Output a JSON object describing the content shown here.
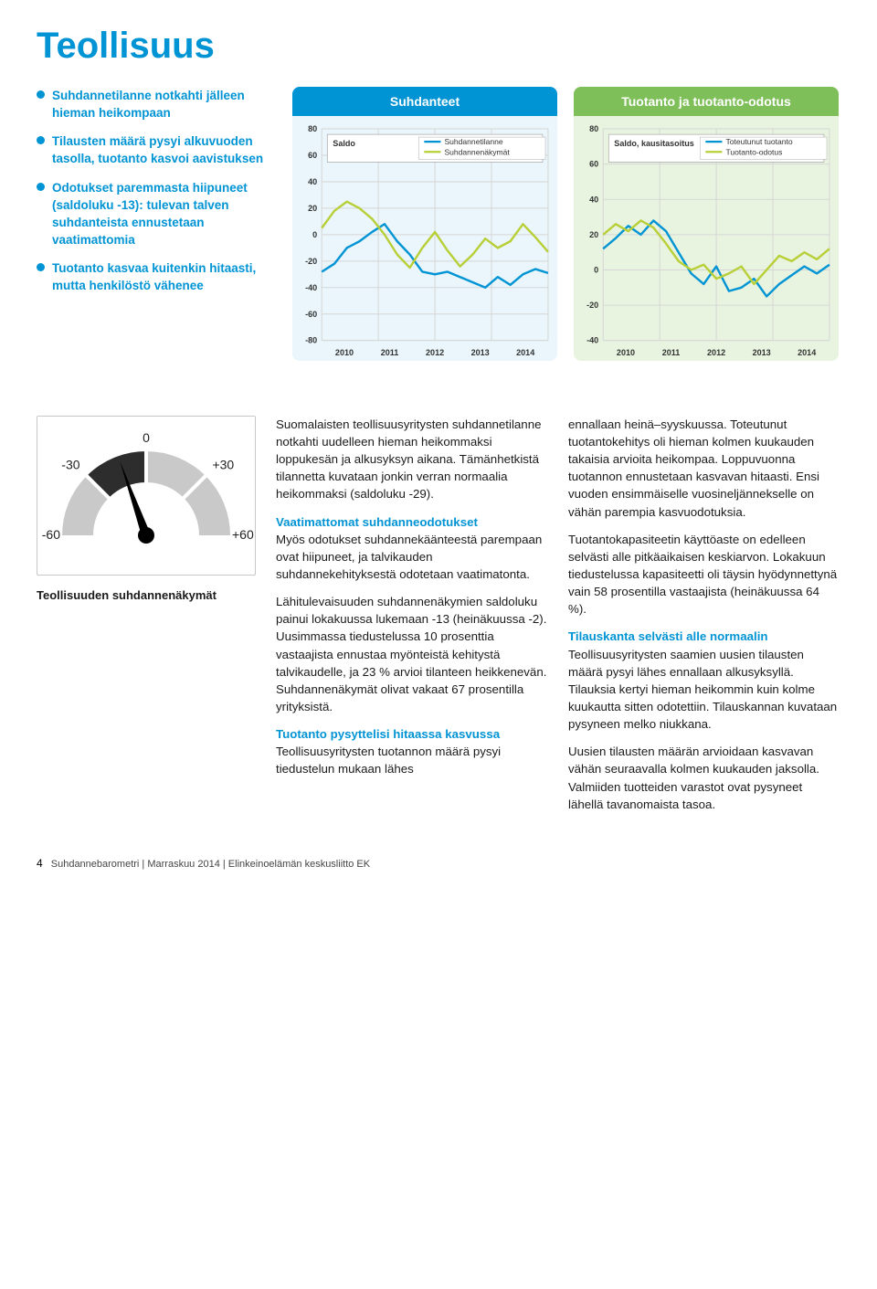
{
  "colors": {
    "accent": "#0094d4",
    "green": "#b8cf37",
    "text": "#1a1a1a",
    "grid": "#d6d6d6",
    "chart1_bg": "#eaf6fb",
    "chart2_bg": "#e8f4e0",
    "chart2_header": "#7fbf5a",
    "gauge_gray": "#c9c9c9",
    "gauge_dark": "#2d2d2d"
  },
  "title": "Teollisuus",
  "bullets": [
    "Suhdannetilanne notkahti jälleen hieman heikompaan",
    "Tilausten määrä pysyi alkuvuoden tasolla, tuotanto kasvoi aavistuksen",
    "Odotukset paremmasta hiipuneet (saldoluku -13): tulevan talven suhdanteista ennustetaan vaatimattomia",
    "Tuotanto kasvaa kuitenkin hitaasti, mutta henkilöstö vähenee"
  ],
  "chart1": {
    "title": "Suhdanteet",
    "legend_title": "Saldo",
    "legend": [
      "Suhdannetilanne",
      "Suhdannenäkymät"
    ],
    "line_colors": [
      "#0094d4",
      "#b8cf37"
    ],
    "ylim": [
      -80,
      80
    ],
    "ytick_step": 20,
    "years": [
      "2010",
      "2011",
      "2012",
      "2013",
      "2014"
    ],
    "background": "#eaf6fb",
    "grid_color": "#d6d6d6",
    "series1": [
      -28,
      -22,
      -10,
      -5,
      2,
      8,
      -5,
      -15,
      -28,
      -30,
      -28,
      -32,
      -36,
      -40,
      -32,
      -38,
      -30,
      -26,
      -29
    ],
    "series2": [
      5,
      18,
      25,
      20,
      12,
      0,
      -15,
      -25,
      -10,
      2,
      -12,
      -24,
      -15,
      -3,
      -10,
      -5,
      8,
      -2,
      -13
    ]
  },
  "chart2": {
    "title": "Tuotanto ja tuotanto-odotus",
    "legend_title": "Saldo, kausitasoitus",
    "legend": [
      "Toteutunut tuotanto",
      "Tuotanto-odotus"
    ],
    "line_colors": [
      "#0094d4",
      "#b8cf37"
    ],
    "ylim": [
      -40,
      80
    ],
    "ytick_step": 20,
    "years": [
      "2010",
      "2011",
      "2012",
      "2013",
      "2014"
    ],
    "background": "#e8f4e0",
    "grid_color": "#d6d6d6",
    "series1": [
      12,
      18,
      25,
      20,
      28,
      22,
      10,
      -2,
      -8,
      2,
      -12,
      -10,
      -5,
      -15,
      -8,
      -3,
      2,
      -2,
      3
    ],
    "series2": [
      20,
      26,
      22,
      28,
      24,
      15,
      5,
      0,
      3,
      -5,
      -2,
      2,
      -8,
      0,
      8,
      5,
      10,
      6,
      12
    ]
  },
  "gauge": {
    "label": "Teollisuuden suhdannenäkymät",
    "ticks": [
      "-60",
      "-30",
      "0",
      "+30",
      "+60"
    ],
    "value": -13,
    "min": -60,
    "max": 60
  },
  "body": {
    "p1": "Suomalaisten teollisuusyritysten suhdannetilanne notkahti uudelleen hieman heikommaksi loppukesän ja alkusyksyn aikana. Tämänhetkistä tilannetta kuvataan jonkin verran normaalia heikommaksi (saldoluku -29).",
    "h1": "Vaatimattomat suhdanneodotukset",
    "p2": "Myös odotukset suhdannekäänteestä parempaan ovat hiipuneet, ja talvikauden suhdannekehityksestä odotetaan vaatimatonta.",
    "p3": "Lähitulevaisuuden suhdannenäkymien saldoluku painui lokakuussa lukemaan -13 (heinäkuussa -2). Uusimmassa tiedustelussa 10 prosenttia vastaajista ennustaa myönteistä kehitystä talvikaudelle, ja 23 % arvioi tilanteen heikkenevän. Suhdannenäkymät olivat vakaat 67 prosentilla yrityksistä.",
    "h2": "Tuotanto pysyttelisi hitaassa kasvussa",
    "p4": "Teollisuusyritysten tuotannon määrä pysyi tiedustelun mukaan lähes",
    "p5": "ennallaan heinä–syyskuussa. Toteutunut tuotantokehitys oli hieman kolmen kuukauden takaisia arvioita heikompaa. Loppuvuonna tuotannon ennustetaan kasvavan hitaasti. Ensi vuoden ensimmäiselle vuosineljännekselle on vähän parempia kasvuodotuksia.",
    "p6": "Tuotantokapasiteetin käyttöaste on edelleen selvästi alle pitkäaikaisen keskiarvon. Lokakuun tiedustelussa kapasiteetti oli täysin hyödynnettynä vain 58 prosentilla vastaajista (heinäkuussa 64 %).",
    "h3": "Tilauskanta selvästi alle normaalin",
    "p7": "Teollisuusyritysten saamien uusien tilausten määrä pysyi lähes ennallaan alkusyksyllä. Tilauksia kertyi hieman heikommin kuin kolme kuukautta sitten odotettiin. Tilauskannan kuvataan pysyneen melko niukkana.",
    "p8": "Uusien tilausten määrän arvioidaan kasvavan vähän seuraavalla kolmen kuukauden jaksolla. Valmiiden tuotteiden varastot ovat pysyneet lähellä tavanomaista tasoa."
  },
  "footer": {
    "page": "4",
    "text": "Suhdannebarometri  |  Marraskuu 2014  |  Elinkeinoelämän keskusliitto EK"
  }
}
